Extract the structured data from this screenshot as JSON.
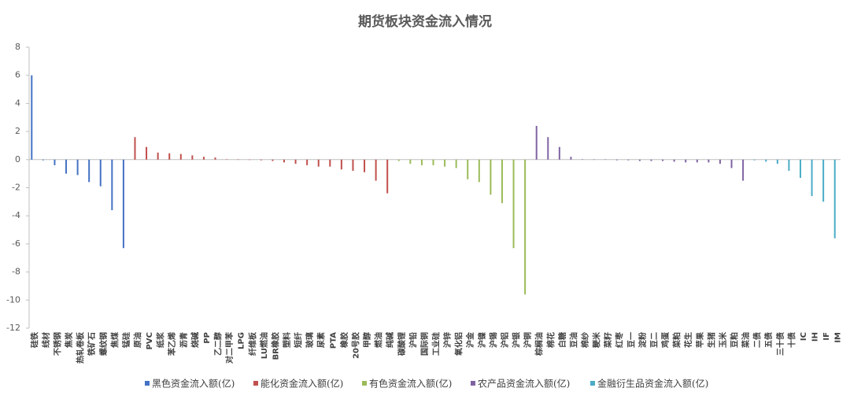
{
  "chart_data": {
    "type": "bar",
    "title": "期货板块资金流入情况",
    "categories": [
      "硅铁",
      "线材",
      "不锈钢",
      "焦炭",
      "热轧卷板",
      "铁矿石",
      "螺纹钢",
      "焦煤",
      "锰硅",
      "原油",
      "PVC",
      "纸浆",
      "苯乙烯",
      "沥青",
      "烧碱",
      "PP",
      "乙二醇",
      "对二甲苯",
      "LPG",
      "纤维板",
      "LU燃油",
      "BR橡胶",
      "塑料",
      "短纤",
      "玻璃",
      "尿素",
      "PTA",
      "橡胶",
      "20号胶",
      "甲醇",
      "燃油",
      "纯碱",
      "碳酸锂",
      "沪铅",
      "国际铜",
      "工业硅",
      "沪锌",
      "氧化铝",
      "沪金",
      "沪镍",
      "沪锡",
      "沪铝",
      "沪银",
      "沪铜",
      "棕榈油",
      "棉花",
      "白糖",
      "豆油",
      "棉纱",
      "粳米",
      "菜籽",
      "红枣",
      "豆一",
      "淀粉",
      "豆二",
      "鸡蛋",
      "菜粕",
      "花生",
      "苹果",
      "生猪",
      "玉米",
      "豆粕",
      "菜油",
      "二债",
      "五债",
      "三十债",
      "十债",
      "IC",
      "IH",
      "IF",
      "IM"
    ],
    "series": [
      {
        "name": "黑色资金流入额(亿)",
        "color": "#4472c4",
        "values": [
          6.0,
          -0.05,
          -0.4,
          -1.0,
          -1.1,
          -1.6,
          -1.9,
          -3.6,
          -6.3,
          null,
          null,
          null,
          null,
          null,
          null,
          null,
          null,
          null,
          null,
          null,
          null,
          null,
          null,
          null,
          null,
          null,
          null,
          null,
          null,
          null,
          null,
          null,
          null,
          null,
          null,
          null,
          null,
          null,
          null,
          null,
          null,
          null,
          null,
          null,
          null,
          null,
          null,
          null,
          null,
          null,
          null,
          null,
          null,
          null,
          null,
          null,
          null,
          null,
          null,
          null,
          null,
          null,
          null,
          null,
          null,
          null,
          null,
          null,
          null,
          null,
          null
        ]
      },
      {
        "name": "能化资金流入额(亿)",
        "color": "#c0504d",
        "values": [
          null,
          null,
          null,
          null,
          null,
          null,
          null,
          null,
          null,
          1.6,
          0.9,
          0.5,
          0.45,
          0.4,
          0.3,
          0.2,
          0.15,
          0.02,
          0.01,
          0,
          -0.05,
          -0.1,
          -0.2,
          -0.3,
          -0.4,
          -0.5,
          -0.5,
          -0.7,
          -0.8,
          -0.9,
          -1.5,
          -2.4,
          null,
          null,
          null,
          null,
          null,
          null,
          null,
          null,
          null,
          null,
          null,
          null,
          null,
          null,
          null,
          null,
          null,
          null,
          null,
          null,
          null,
          null,
          null,
          null,
          null,
          null,
          null,
          null,
          null,
          null,
          null,
          null,
          null,
          null,
          null,
          null,
          null,
          null,
          null
        ]
      },
      {
        "name": "有色资金流入额(亿)",
        "color": "#9bbb59",
        "values": [
          null,
          null,
          null,
          null,
          null,
          null,
          null,
          null,
          null,
          null,
          null,
          null,
          null,
          null,
          null,
          null,
          null,
          null,
          null,
          null,
          null,
          null,
          null,
          null,
          null,
          null,
          null,
          null,
          null,
          null,
          null,
          null,
          -0.1,
          -0.3,
          -0.4,
          -0.4,
          -0.5,
          -0.6,
          -1.4,
          -1.6,
          -2.5,
          -3.1,
          -6.3,
          -9.6,
          null,
          null,
          null,
          null,
          null,
          null,
          null,
          null,
          null,
          null,
          null,
          null,
          null,
          null,
          null,
          null,
          null,
          null,
          null,
          null,
          null,
          null,
          null,
          null,
          null,
          null,
          null
        ]
      },
      {
        "name": "农产品资金流入额(亿)",
        "color": "#8064a2",
        "values": [
          null,
          null,
          null,
          null,
          null,
          null,
          null,
          null,
          null,
          null,
          null,
          null,
          null,
          null,
          null,
          null,
          null,
          null,
          null,
          null,
          null,
          null,
          null,
          null,
          null,
          null,
          null,
          null,
          null,
          null,
          null,
          null,
          null,
          null,
          null,
          null,
          null,
          null,
          null,
          null,
          null,
          null,
          null,
          null,
          2.4,
          1.6,
          0.9,
          0.2,
          0.02,
          0.01,
          0.01,
          -0.05,
          -0.05,
          -0.1,
          -0.1,
          -0.1,
          -0.15,
          -0.2,
          -0.2,
          -0.2,
          -0.3,
          -0.6,
          -1.5,
          null,
          null,
          null,
          null,
          null,
          null,
          null,
          null
        ]
      },
      {
        "name": "金融衍生品资金流入额(亿)",
        "color": "#4bacc6",
        "values": [
          null,
          null,
          null,
          null,
          null,
          null,
          null,
          null,
          null,
          null,
          null,
          null,
          null,
          null,
          null,
          null,
          null,
          null,
          null,
          null,
          null,
          null,
          null,
          null,
          null,
          null,
          null,
          null,
          null,
          null,
          null,
          null,
          null,
          null,
          null,
          null,
          null,
          null,
          null,
          null,
          null,
          null,
          null,
          null,
          null,
          null,
          null,
          null,
          null,
          null,
          null,
          null,
          null,
          null,
          null,
          null,
          null,
          null,
          null,
          null,
          null,
          null,
          null,
          -0.05,
          -0.15,
          -0.3,
          -0.8,
          -1.3,
          -2.6,
          -3.0,
          -5.6
        ]
      }
    ],
    "ylim": [
      -12,
      8
    ],
    "yticks": [
      8,
      6,
      4,
      2,
      0,
      -2,
      -4,
      -6,
      -8,
      -10,
      -12
    ]
  }
}
